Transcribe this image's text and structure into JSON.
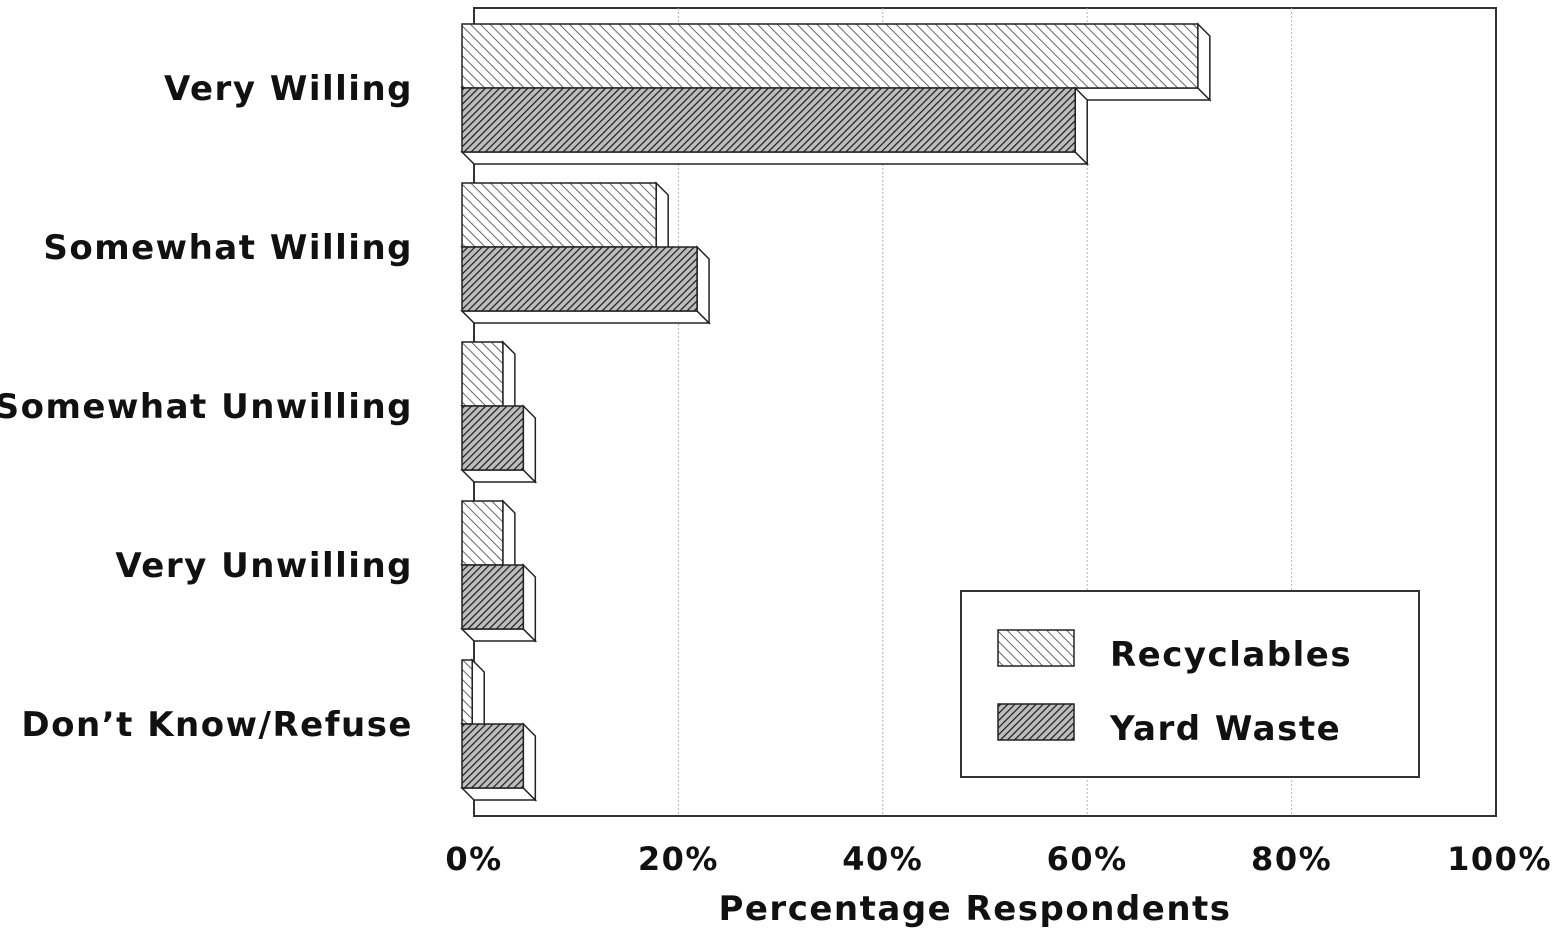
{
  "chart_data": {
    "type": "bar",
    "orientation": "horizontal",
    "categories": [
      "Very Willing",
      "Somewhat Willing",
      "Somewhat Unwilling",
      "Very Unwilling",
      "Don’t Know/Refuse"
    ],
    "series": [
      {
        "name": "Recyclables",
        "values": [
          72,
          19,
          4,
          4,
          1
        ],
        "pattern": "light-hatch",
        "color": "#d6d6d6"
      },
      {
        "name": "Yard Waste",
        "values": [
          60,
          23,
          6,
          6,
          6
        ],
        "pattern": "dark-hatch",
        "color": "#6e6e6e"
      }
    ],
    "xlabel": "Percentage Respondents",
    "xticks": [
      "0%",
      "20%",
      "40%",
      "60%",
      "80%",
      "100%"
    ],
    "xlim": [
      0,
      100
    ],
    "grid": "vertical",
    "legend": "bottom-right",
    "style": "3d-hatched"
  }
}
